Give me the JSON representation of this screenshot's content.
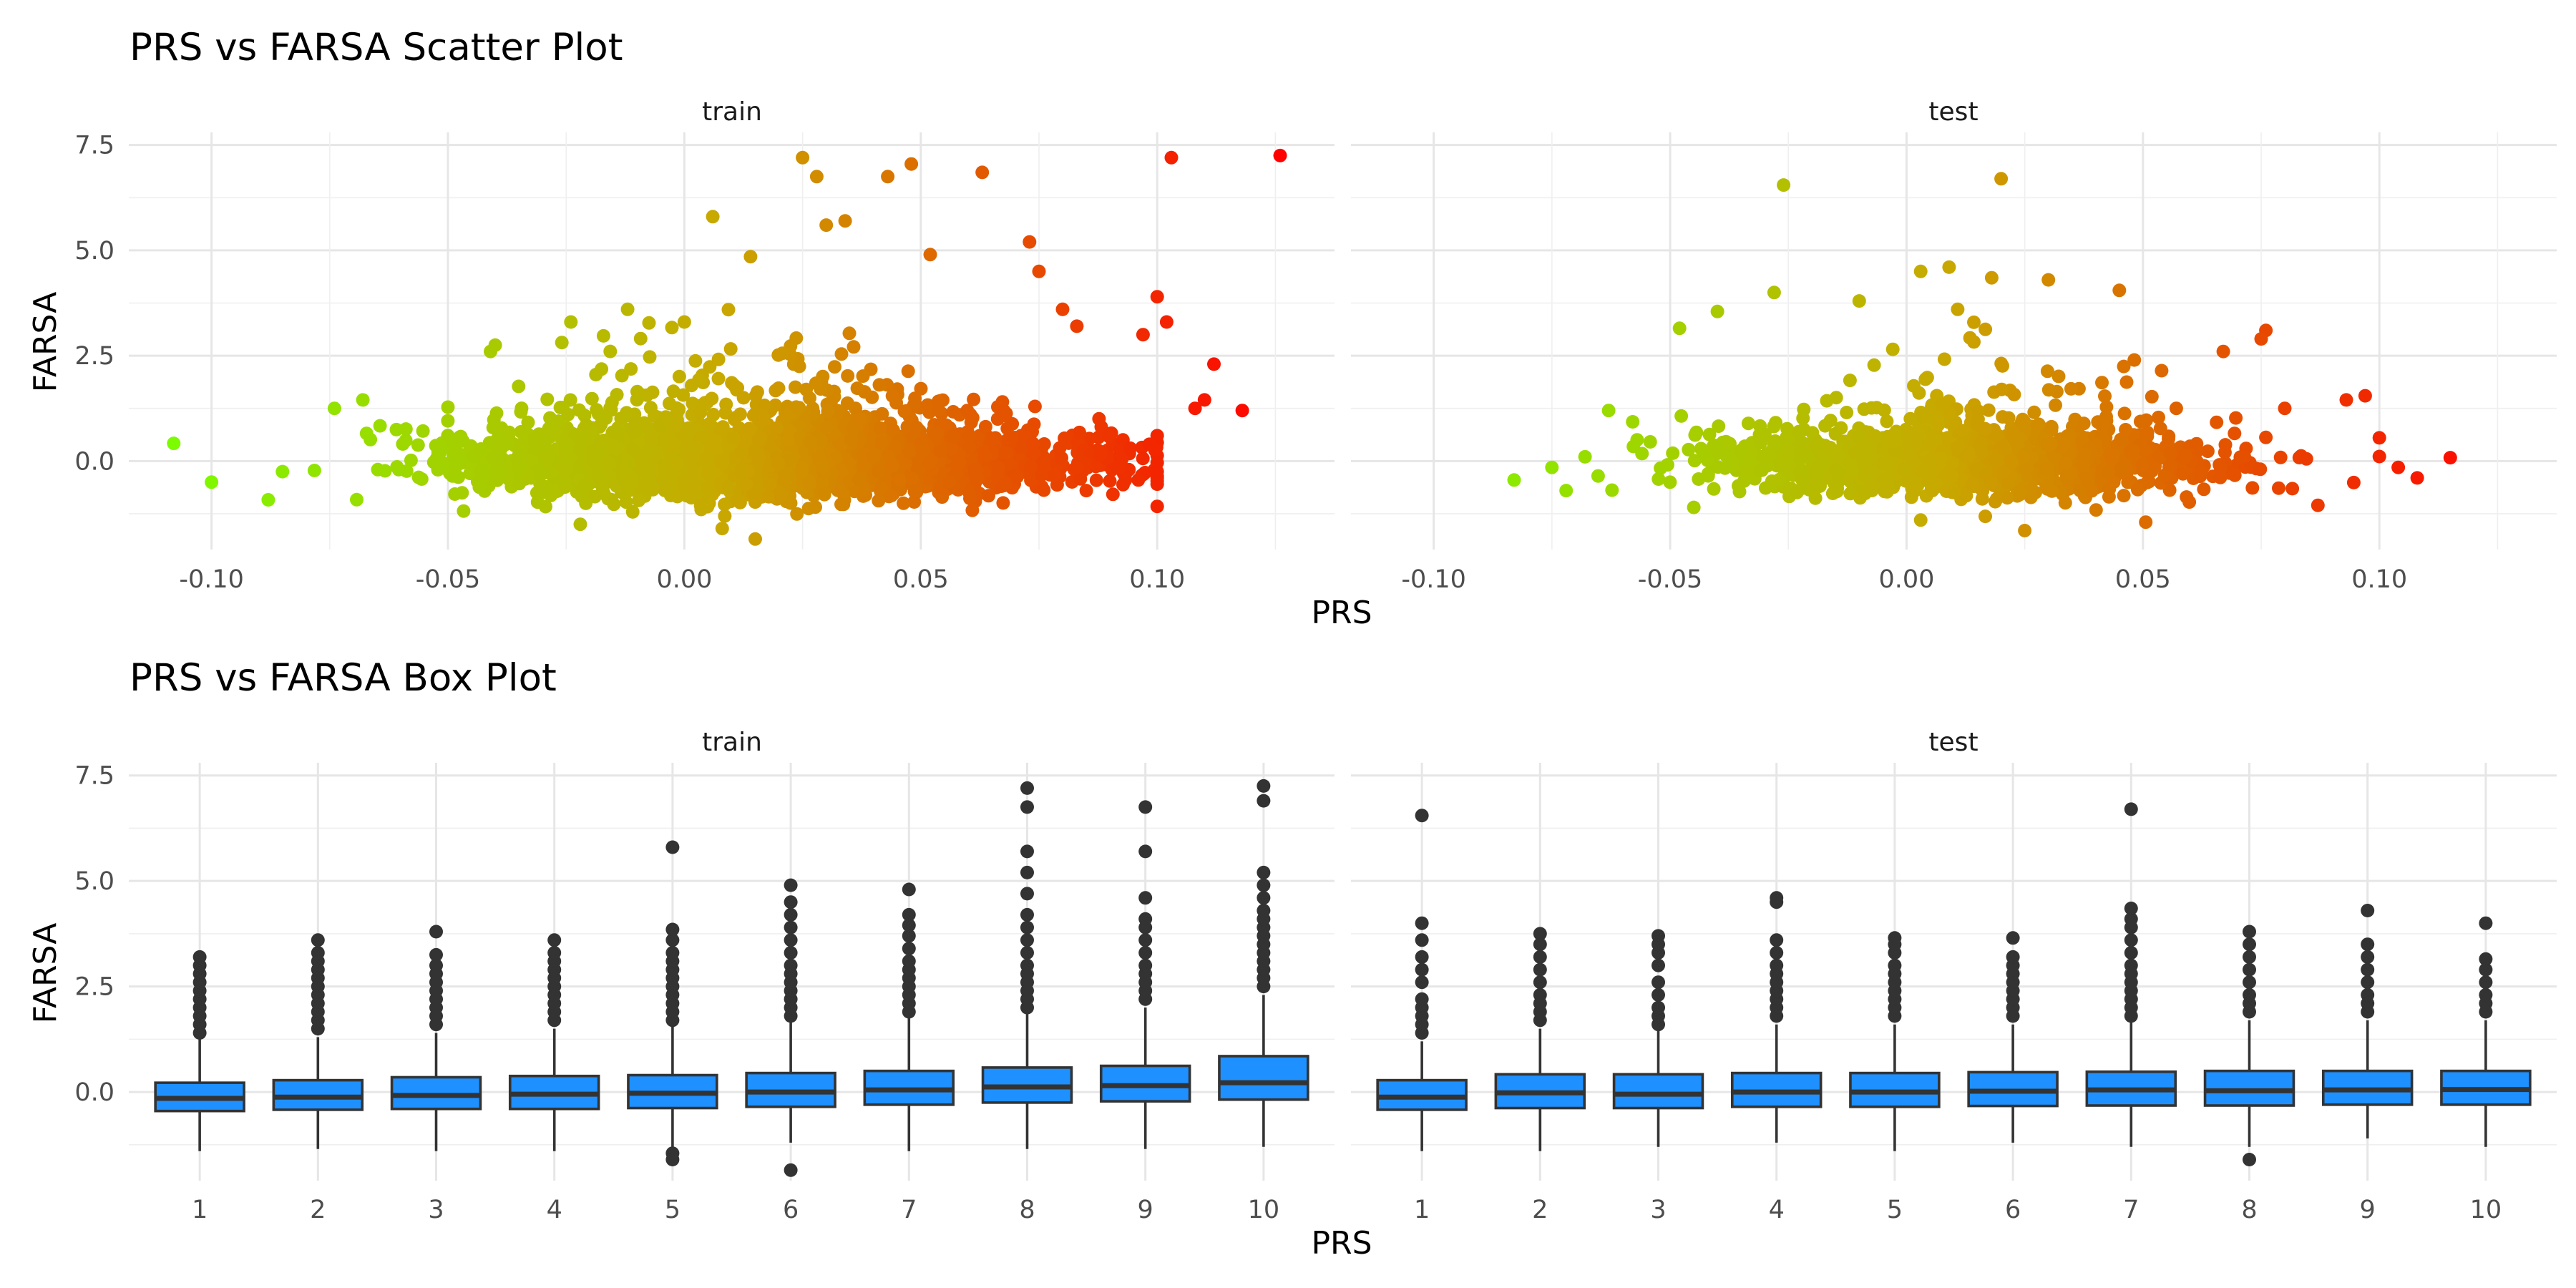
{
  "chart_data": [
    {
      "type": "scatter",
      "title": "PRS vs FARSA Scatter Plot",
      "xlabel": "PRS",
      "ylabel": "FARSA",
      "panels": [
        "train",
        "test"
      ],
      "xlim": [
        -0.1175,
        0.1375
      ],
      "ylim": [
        -2.1,
        7.8
      ],
      "x_ticks": [
        -0.1,
        -0.05,
        0.0,
        0.05,
        0.1
      ],
      "x_tick_labels": [
        "-0.10",
        "-0.05",
        "0.00",
        "0.05",
        "0.10"
      ],
      "y_ticks": [
        0.0,
        2.5,
        5.0,
        7.5
      ],
      "y_tick_labels": [
        "0.0",
        "2.5",
        "5.0",
        "7.5"
      ],
      "grid": true,
      "color_gradient": {
        "low": "#7CFC00",
        "mid": "#C8A800",
        "high": "#FF0000"
      },
      "series": [
        {
          "name": "train",
          "n_points": 4000,
          "points": [
            {
              "x": -0.108,
              "y": 0.42
            },
            {
              "x": -0.1,
              "y": -0.5
            },
            {
              "x": -0.088,
              "y": -0.92
            },
            {
              "x": -0.085,
              "y": -0.25
            },
            {
              "x": -0.074,
              "y": 1.25
            },
            {
              "x": -0.068,
              "y": 1.45
            },
            {
              "x": -0.05,
              "y": 1.28
            },
            {
              "x": -0.04,
              "y": 2.75
            },
            {
              "x": -0.041,
              "y": 2.6
            },
            {
              "x": -0.024,
              "y": 3.3
            },
            {
              "x": -0.012,
              "y": 3.6
            },
            {
              "x": 0.0,
              "y": 3.3
            },
            {
              "x": 0.006,
              "y": 5.8
            },
            {
              "x": 0.014,
              "y": 4.85
            },
            {
              "x": 0.025,
              "y": 7.2
            },
            {
              "x": 0.028,
              "y": 6.75
            },
            {
              "x": 0.03,
              "y": 5.6
            },
            {
              "x": 0.034,
              "y": 5.7
            },
            {
              "x": 0.043,
              "y": 6.75
            },
            {
              "x": 0.048,
              "y": 7.05
            },
            {
              "x": 0.052,
              "y": 4.9
            },
            {
              "x": 0.063,
              "y": 6.85
            },
            {
              "x": 0.073,
              "y": 5.2
            },
            {
              "x": 0.075,
              "y": 4.5
            },
            {
              "x": 0.08,
              "y": 3.6
            },
            {
              "x": 0.083,
              "y": 3.2
            },
            {
              "x": 0.1,
              "y": 3.9
            },
            {
              "x": 0.102,
              "y": 3.3
            },
            {
              "x": 0.097,
              "y": 3.0
            },
            {
              "x": 0.103,
              "y": 7.2
            },
            {
              "x": 0.126,
              "y": 7.25
            },
            {
              "x": 0.112,
              "y": 2.3
            },
            {
              "x": 0.11,
              "y": 1.45
            },
            {
              "x": 0.118,
              "y": 1.2
            },
            {
              "x": 0.108,
              "y": 1.25
            },
            {
              "x": 0.1,
              "y": -0.4
            },
            {
              "x": 0.096,
              "y": -0.45
            },
            {
              "x": 0.085,
              "y": -0.7
            },
            {
              "x": 0.015,
              "y": -1.85
            },
            {
              "x": -0.022,
              "y": -1.5
            },
            {
              "x": 0.008,
              "y": -1.6
            }
          ]
        },
        {
          "name": "test",
          "n_points": 1500,
          "points": [
            {
              "x": -0.083,
              "y": -0.45
            },
            {
              "x": -0.075,
              "y": -0.15
            },
            {
              "x": -0.072,
              "y": -0.7
            },
            {
              "x": -0.068,
              "y": 0.1
            },
            {
              "x": -0.063,
              "y": 1.2
            },
            {
              "x": -0.048,
              "y": 3.15
            },
            {
              "x": -0.04,
              "y": 3.55
            },
            {
              "x": -0.026,
              "y": 6.55
            },
            {
              "x": -0.028,
              "y": 4.0
            },
            {
              "x": -0.01,
              "y": 3.8
            },
            {
              "x": 0.003,
              "y": 4.5
            },
            {
              "x": 0.009,
              "y": 4.6
            },
            {
              "x": 0.02,
              "y": 6.7
            },
            {
              "x": 0.018,
              "y": 4.35
            },
            {
              "x": 0.03,
              "y": 4.3
            },
            {
              "x": 0.045,
              "y": 4.05
            },
            {
              "x": 0.076,
              "y": 3.1
            },
            {
              "x": 0.075,
              "y": 2.9
            },
            {
              "x": 0.067,
              "y": 2.6
            },
            {
              "x": 0.08,
              "y": 1.25
            },
            {
              "x": 0.093,
              "y": 1.45
            },
            {
              "x": 0.097,
              "y": 1.55
            },
            {
              "x": 0.1,
              "y": 0.55
            },
            {
              "x": 0.104,
              "y": -0.15
            },
            {
              "x": 0.108,
              "y": -0.4
            },
            {
              "x": 0.115,
              "y": 0.08
            },
            {
              "x": 0.087,
              "y": -1.05
            },
            {
              "x": 0.025,
              "y": -1.65
            },
            {
              "x": 0.003,
              "y": -1.4
            },
            {
              "x": -0.045,
              "y": -1.1
            }
          ]
        }
      ]
    },
    {
      "type": "box",
      "title": "PRS vs FARSA Box Plot",
      "xlabel": "PRS",
      "ylabel": "FARSA",
      "panels": [
        "train",
        "test"
      ],
      "categories": [
        "1",
        "2",
        "3",
        "4",
        "5",
        "6",
        "7",
        "8",
        "9",
        "10"
      ],
      "ylim": [
        -2.1,
        7.8
      ],
      "y_ticks": [
        0.0,
        2.5,
        5.0,
        7.5
      ],
      "y_tick_labels": [
        "0.0",
        "2.5",
        "5.0",
        "7.5"
      ],
      "grid": true,
      "box_fill": "#1E90FF",
      "series": [
        {
          "name": "train",
          "boxes": [
            {
              "q1": -0.45,
              "median": -0.15,
              "q3": 0.22,
              "whisker_low": -1.4,
              "whisker_high": 1.25,
              "outliers": [
                1.4,
                1.6,
                1.8,
                2.0,
                2.2,
                2.4,
                2.6,
                2.8,
                3.0,
                3.2
              ]
            },
            {
              "q1": -0.42,
              "median": -0.12,
              "q3": 0.28,
              "whisker_low": -1.35,
              "whisker_high": 1.3,
              "outliers": [
                1.5,
                1.7,
                1.9,
                2.1,
                2.3,
                2.5,
                2.7,
                2.9,
                3.1,
                3.3,
                3.6
              ]
            },
            {
              "q1": -0.4,
              "median": -0.08,
              "q3": 0.35,
              "whisker_low": -1.4,
              "whisker_high": 1.4,
              "outliers": [
                1.6,
                1.8,
                2.0,
                2.2,
                2.4,
                2.6,
                2.8,
                3.0,
                3.25,
                3.8
              ]
            },
            {
              "q1": -0.4,
              "median": -0.05,
              "q3": 0.38,
              "whisker_low": -1.4,
              "whisker_high": 1.5,
              "outliers": [
                1.7,
                1.9,
                2.1,
                2.3,
                2.5,
                2.7,
                2.9,
                3.1,
                3.3,
                3.6
              ]
            },
            {
              "q1": -0.38,
              "median": -0.03,
              "q3": 0.4,
              "whisker_low": -1.3,
              "whisker_high": 1.55,
              "outliers": [
                -1.45,
                -1.6,
                1.7,
                1.9,
                2.1,
                2.3,
                2.5,
                2.7,
                2.9,
                3.1,
                3.3,
                3.6,
                3.85,
                5.8
              ]
            },
            {
              "q1": -0.35,
              "median": 0.0,
              "q3": 0.45,
              "whisker_low": -1.2,
              "whisker_high": 1.65,
              "outliers": [
                -1.85,
                1.8,
                2.0,
                2.2,
                2.4,
                2.6,
                2.8,
                3.0,
                3.3,
                3.6,
                3.9,
                4.2,
                4.5,
                4.9
              ]
            },
            {
              "q1": -0.3,
              "median": 0.05,
              "q3": 0.5,
              "whisker_low": -1.4,
              "whisker_high": 1.75,
              "outliers": [
                1.9,
                2.1,
                2.3,
                2.5,
                2.7,
                2.9,
                3.1,
                3.4,
                3.7,
                3.95,
                4.2,
                4.8
              ]
            },
            {
              "q1": -0.25,
              "median": 0.12,
              "q3": 0.58,
              "whisker_low": -1.35,
              "whisker_high": 1.9,
              "outliers": [
                2.0,
                2.2,
                2.4,
                2.6,
                2.8,
                3.0,
                3.3,
                3.6,
                3.9,
                4.2,
                4.7,
                5.2,
                5.7,
                6.75,
                7.2
              ]
            },
            {
              "q1": -0.22,
              "median": 0.15,
              "q3": 0.62,
              "whisker_low": -1.35,
              "whisker_high": 2.0,
              "outliers": [
                2.2,
                2.4,
                2.6,
                2.8,
                3.0,
                3.3,
                3.6,
                3.9,
                4.1,
                4.6,
                5.7,
                6.75
              ]
            },
            {
              "q1": -0.18,
              "median": 0.22,
              "q3": 0.85,
              "whisker_low": -1.3,
              "whisker_high": 2.3,
              "outliers": [
                2.5,
                2.7,
                2.9,
                3.1,
                3.3,
                3.5,
                3.7,
                3.9,
                4.1,
                4.3,
                4.6,
                4.9,
                5.2,
                6.9,
                7.25
              ]
            }
          ]
        },
        {
          "name": "test",
          "boxes": [
            {
              "q1": -0.42,
              "median": -0.12,
              "q3": 0.28,
              "whisker_low": -1.4,
              "whisker_high": 1.2,
              "outliers": [
                1.4,
                1.6,
                1.8,
                2.0,
                2.2,
                2.6,
                2.9,
                3.2,
                3.6,
                4.0,
                6.55
              ]
            },
            {
              "q1": -0.38,
              "median": -0.02,
              "q3": 0.42,
              "whisker_low": -1.4,
              "whisker_high": 1.5,
              "outliers": [
                1.7,
                1.9,
                2.1,
                2.3,
                2.6,
                2.9,
                3.2,
                3.5,
                3.75
              ]
            },
            {
              "q1": -0.38,
              "median": -0.05,
              "q3": 0.42,
              "whisker_low": -1.3,
              "whisker_high": 1.5,
              "outliers": [
                1.6,
                1.8,
                2.0,
                2.3,
                2.6,
                3.0,
                3.3,
                3.5,
                3.7
              ]
            },
            {
              "q1": -0.35,
              "median": 0.0,
              "q3": 0.45,
              "whisker_low": -1.2,
              "whisker_high": 1.6,
              "outliers": [
                1.8,
                2.0,
                2.2,
                2.4,
                2.6,
                2.8,
                3.0,
                3.3,
                3.6,
                4.5,
                4.6
              ]
            },
            {
              "q1": -0.35,
              "median": 0.0,
              "q3": 0.45,
              "whisker_low": -1.4,
              "whisker_high": 1.6,
              "outliers": [
                1.8,
                2.0,
                2.2,
                2.4,
                2.6,
                2.8,
                3.0,
                3.3,
                3.5,
                3.65
              ]
            },
            {
              "q1": -0.33,
              "median": 0.02,
              "q3": 0.47,
              "whisker_low": -1.2,
              "whisker_high": 1.6,
              "outliers": [
                1.8,
                2.0,
                2.2,
                2.4,
                2.6,
                2.8,
                3.0,
                3.2,
                3.65
              ]
            },
            {
              "q1": -0.32,
              "median": 0.05,
              "q3": 0.48,
              "whisker_low": -1.3,
              "whisker_high": 1.65,
              "outliers": [
                1.8,
                2.0,
                2.2,
                2.4,
                2.6,
                2.8,
                3.0,
                3.3,
                3.6,
                3.9,
                4.1,
                4.35,
                6.7
              ]
            },
            {
              "q1": -0.32,
              "median": 0.03,
              "q3": 0.5,
              "whisker_low": -1.3,
              "whisker_high": 1.7,
              "outliers": [
                -1.6,
                1.9,
                2.1,
                2.3,
                2.6,
                2.9,
                3.2,
                3.5,
                3.8
              ]
            },
            {
              "q1": -0.3,
              "median": 0.05,
              "q3": 0.5,
              "whisker_low": -1.1,
              "whisker_high": 1.7,
              "outliers": [
                1.9,
                2.1,
                2.3,
                2.6,
                2.9,
                3.2,
                3.5,
                4.3
              ]
            },
            {
              "q1": -0.3,
              "median": 0.06,
              "q3": 0.5,
              "whisker_low": -1.3,
              "whisker_high": 1.7,
              "outliers": [
                1.9,
                2.1,
                2.3,
                2.6,
                2.9,
                3.15,
                4.0
              ]
            }
          ]
        }
      ]
    }
  ]
}
